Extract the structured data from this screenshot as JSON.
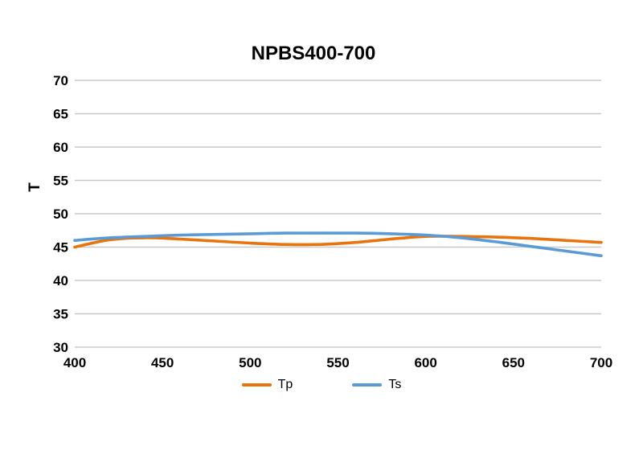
{
  "chart_data": {
    "type": "line",
    "title": "NPBS400-700",
    "xlabel": "",
    "ylabel": "T",
    "xlim": [
      400,
      700
    ],
    "ylim": [
      30,
      70
    ],
    "xticks": [
      400,
      450,
      500,
      550,
      600,
      650,
      700
    ],
    "yticks": [
      30,
      35,
      40,
      45,
      50,
      55,
      60,
      65,
      70
    ],
    "grid": "horizontal-only",
    "gridline_color": "#c8c8c8",
    "legend_position": "bottom-center",
    "x": [
      400,
      420,
      440,
      460,
      480,
      500,
      520,
      540,
      560,
      580,
      600,
      620,
      640,
      660,
      680,
      700
    ],
    "series": [
      {
        "name": "Tp",
        "color": "#e8740d",
        "values": [
          45.0,
          46.1,
          46.4,
          46.2,
          45.9,
          45.6,
          45.4,
          45.4,
          45.7,
          46.2,
          46.6,
          46.6,
          46.5,
          46.3,
          46.0,
          45.7
        ]
      },
      {
        "name": "Ts",
        "color": "#5b9bd5",
        "values": [
          46.0,
          46.4,
          46.6,
          46.8,
          46.9,
          47.0,
          47.1,
          47.1,
          47.1,
          47.0,
          46.8,
          46.4,
          45.8,
          45.1,
          44.4,
          43.7
        ]
      }
    ]
  }
}
